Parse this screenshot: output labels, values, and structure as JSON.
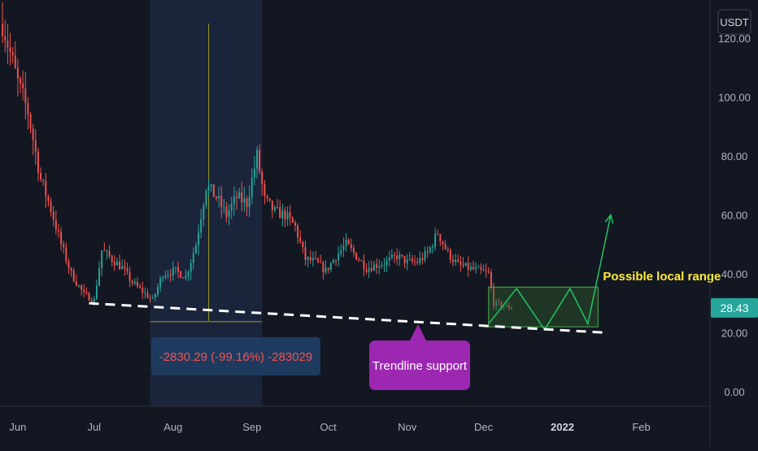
{
  "colors": {
    "background": "#131722",
    "grid": "#1e222d",
    "up_candle": "#26a69a",
    "down_candle": "#ef5350",
    "axis_text": "#b2b5be",
    "price_label_bg": "#26a69a",
    "highlight_region": "#1c2740",
    "range_box": "#2e5d2e",
    "projection": "#22c55e",
    "trendline": "#ffffff",
    "annotation_yellow": "#ffeb3b",
    "measure_text": "#ef5350",
    "measure_bg": "#1f3a5f",
    "callout_bg": "#9c27b0"
  },
  "chart_data": {
    "type": "candlestick",
    "quote_currency": "USDT",
    "x_axis": {
      "type": "time",
      "tick_labels": [
        "Jun",
        "Jul",
        "Aug",
        "Sep",
        "Oct",
        "Nov",
        "Dec",
        "2022",
        "Feb"
      ],
      "range": [
        "2021-05-25",
        "2022-02-28"
      ]
    },
    "y_axis": {
      "ticks": [
        0,
        20,
        40,
        60,
        80,
        100,
        120
      ],
      "tick_labels": [
        "0.00",
        "20.00",
        "40.00",
        "60.00",
        "80.00",
        "100.00",
        "120.00"
      ],
      "range": [
        -5,
        133
      ],
      "position": "right"
    },
    "grid": false,
    "last_price": 28.43,
    "last_price_label": "28.43",
    "price_path": [
      [
        "2021-05-26",
        125
      ],
      [
        "2021-06-01",
        105
      ],
      [
        "2021-06-05",
        95
      ],
      [
        "2021-06-10",
        72
      ],
      [
        "2021-06-14",
        62
      ],
      [
        "2021-06-18",
        50
      ],
      [
        "2021-06-22",
        40
      ],
      [
        "2021-06-27",
        33
      ],
      [
        "2021-07-01",
        31
      ],
      [
        "2021-07-04",
        48
      ],
      [
        "2021-07-08",
        45
      ],
      [
        "2021-07-12",
        42
      ],
      [
        "2021-07-16",
        37
      ],
      [
        "2021-07-20",
        34
      ],
      [
        "2021-07-24",
        31
      ],
      [
        "2021-07-28",
        40
      ],
      [
        "2021-08-02",
        41
      ],
      [
        "2021-08-06",
        39
      ],
      [
        "2021-08-10",
        50
      ],
      [
        "2021-08-14",
        70
      ],
      [
        "2021-08-18",
        66
      ],
      [
        "2021-08-22",
        60
      ],
      [
        "2021-08-26",
        66
      ],
      [
        "2021-08-30",
        64
      ],
      [
        "2021-09-03",
        80
      ],
      [
        "2021-09-06",
        65
      ],
      [
        "2021-09-10",
        61
      ],
      [
        "2021-09-14",
        60
      ],
      [
        "2021-09-18",
        56
      ],
      [
        "2021-09-22",
        45
      ],
      [
        "2021-09-26",
        44
      ],
      [
        "2021-09-30",
        41
      ],
      [
        "2021-10-04",
        46
      ],
      [
        "2021-10-08",
        50
      ],
      [
        "2021-10-12",
        46
      ],
      [
        "2021-10-16",
        42
      ],
      [
        "2021-10-20",
        43
      ],
      [
        "2021-10-24",
        44
      ],
      [
        "2021-10-28",
        46
      ],
      [
        "2021-11-01",
        44
      ],
      [
        "2021-11-05",
        44
      ],
      [
        "2021-11-09",
        47
      ],
      [
        "2021-11-13",
        54
      ],
      [
        "2021-11-17",
        47
      ],
      [
        "2021-11-21",
        43
      ],
      [
        "2021-11-25",
        42
      ],
      [
        "2021-11-29",
        41
      ],
      [
        "2021-12-03",
        40
      ],
      [
        "2021-12-05",
        30
      ],
      [
        "2021-12-09",
        29
      ],
      [
        "2021-12-12",
        28.43
      ]
    ],
    "highlight_range": {
      "from": "2021-07-23",
      "to": "2021-09-05"
    },
    "measurement": {
      "low": 24,
      "high": 125,
      "date": "2021-08-15"
    },
    "trendline": {
      "points": [
        [
          "2021-06-29",
          30
        ],
        [
          "2022-01-18",
          20
        ]
      ],
      "style": "dashed"
    },
    "range_box": {
      "from": "2021-12-03",
      "to": "2022-01-15",
      "low": 22,
      "high": 35.5
    },
    "projection_path": [
      [
        "2021-12-03",
        23
      ],
      [
        "2021-12-14",
        35
      ],
      [
        "2021-12-25",
        21
      ],
      [
        "2022-01-04",
        35
      ],
      [
        "2022-01-11",
        23
      ],
      [
        "2022-01-20",
        60
      ]
    ]
  },
  "annotations": {
    "measure_label": "-2830.29 (-99.16%) -283029",
    "callout_label": "Trendline support",
    "range_label": "Possible local range"
  }
}
